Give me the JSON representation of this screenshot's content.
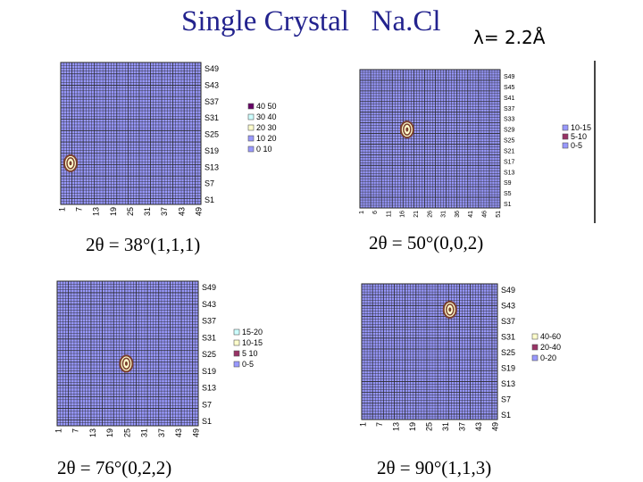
{
  "header": {
    "title": "Single Crystal   Na.Cl",
    "wavelength": "λ= 2.2Å"
  },
  "colors": {
    "background_band": "#9999ff",
    "grid_line": "#2a2a2a",
    "peak": "#7a3e2e"
  },
  "chart_data": [
    {
      "type": "heatmap",
      "caption": "2θ = 38°(1,1,1)",
      "x_ticks": [
        "1",
        "7",
        "13",
        "19",
        "25",
        "31",
        "37",
        "43",
        "49"
      ],
      "y_ticks": [
        "S49",
        "S43",
        "S37",
        "S31",
        "S25",
        "S19",
        "S13",
        "S7",
        "S1"
      ],
      "grid": 50,
      "legend": {
        "position": "right",
        "entries": [
          "40 50",
          "30 40",
          "20 30",
          "10 20",
          "0 10"
        ],
        "colors": [
          "#660066",
          "#ccffff",
          "#ffffcc",
          "#9999ff",
          "#9999ff"
        ]
      },
      "peaks": [
        {
          "x": 4,
          "y": 15
        }
      ]
    },
    {
      "type": "heatmap",
      "caption": "2θ = 50°(0,0,2)",
      "x_ticks": [
        "1",
        "6",
        "11",
        "16",
        "21",
        "26",
        "31",
        "36",
        "41",
        "46",
        "51"
      ],
      "y_ticks": [
        "S49",
        "S45",
        "S41",
        "S37",
        "S33",
        "S29",
        "S25",
        "S21",
        "S17",
        "S13",
        "S9",
        "S5",
        "S1"
      ],
      "grid": 52,
      "legend": {
        "position": "right",
        "entries": [
          "10-15",
          "5-10",
          "0-5"
        ],
        "colors": [
          "#9999ff",
          "#993366",
          "#9999ff"
        ]
      },
      "peaks": [
        {
          "x": 18,
          "y": 30
        }
      ]
    },
    {
      "type": "heatmap",
      "caption": "2θ = 76°(0,2,2)",
      "x_ticks": [
        "1",
        "7",
        "13",
        "19",
        "25",
        "31",
        "37",
        "43",
        "49"
      ],
      "y_ticks": [
        "S49",
        "S43",
        "S37",
        "S31",
        "S25",
        "S19",
        "S13",
        "S7",
        "S1"
      ],
      "grid": 50,
      "legend": {
        "position": "right",
        "entries": [
          "15-20",
          "10-15",
          "5 10",
          "0-5"
        ],
        "colors": [
          "#ccffff",
          "#ffffcc",
          "#993366",
          "#9999ff"
        ]
      },
      "peaks": [
        {
          "x": 25,
          "y": 22
        }
      ]
    },
    {
      "type": "heatmap",
      "caption": "2θ = 90°(1,1,3)",
      "x_ticks": [
        "1",
        "7",
        "13",
        "19",
        "25",
        "31",
        "37",
        "43",
        "49"
      ],
      "y_ticks": [
        "S49",
        "S43",
        "S37",
        "S31",
        "S25",
        "S19",
        "S13",
        "S7",
        "S1"
      ],
      "grid": 50,
      "legend": {
        "position": "right",
        "entries": [
          "40-60",
          "20-40",
          "0-20"
        ],
        "colors": [
          "#ffffcc",
          "#993366",
          "#9999ff"
        ]
      },
      "peaks": [
        {
          "x": 33,
          "y": 41
        }
      ]
    }
  ]
}
